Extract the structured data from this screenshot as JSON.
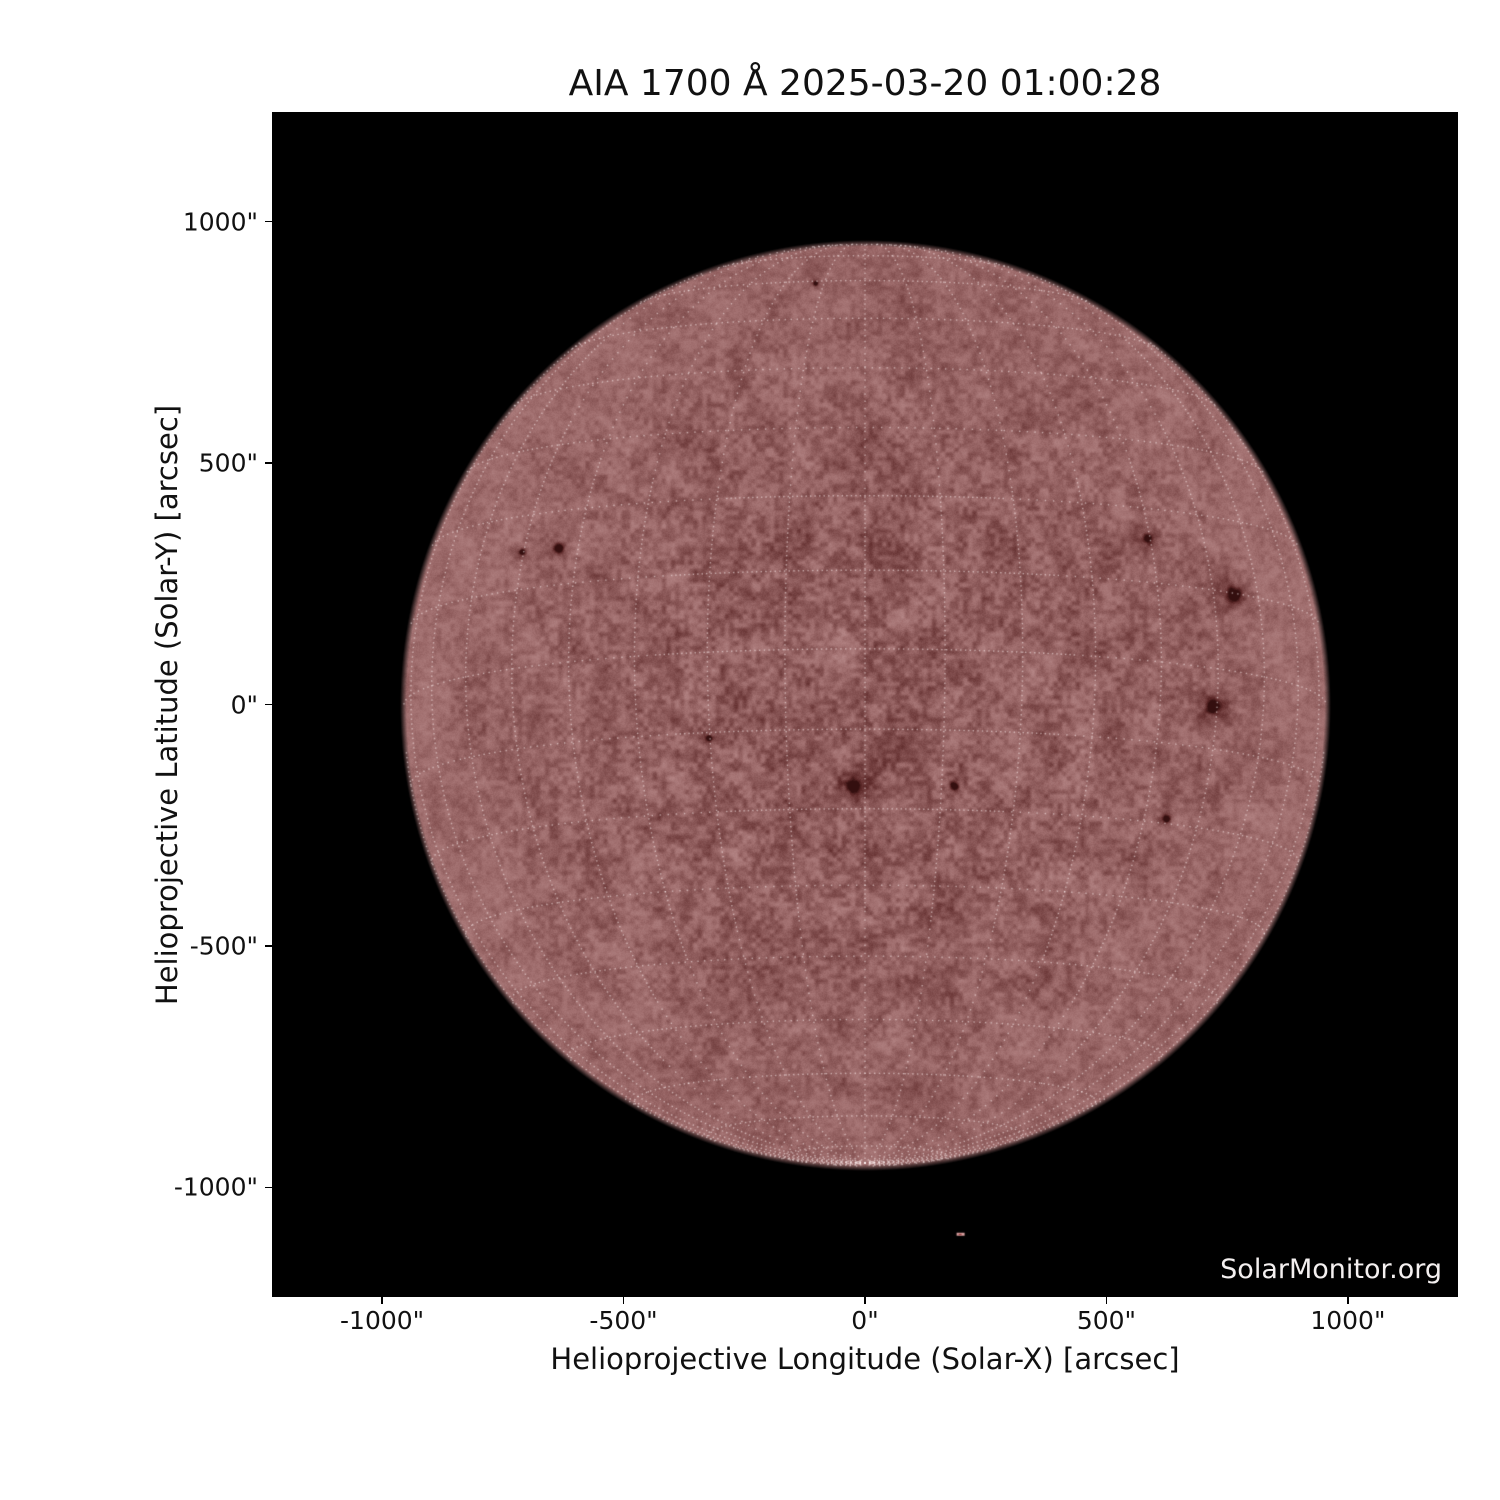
{
  "chart_data": {
    "type": "heatmap",
    "title": "AIA 1700 Å 2025-03-20 01:00:28",
    "instrument": "AIA",
    "wavelength": "1700 Å",
    "observation_datetime": "2025-03-20 01:00:28",
    "xlabel": "Helioprojective Longitude (Solar-X) [arcsec]",
    "ylabel": "Helioprojective Latitude (Solar-Y) [arcsec]",
    "xlim": [
      -1228,
      1228
    ],
    "ylim": [
      -1228,
      1228
    ],
    "xticks": {
      "values": [
        -1000,
        -500,
        0,
        500,
        1000
      ],
      "labels": [
        "-1000\"",
        "-500\"",
        "0\"",
        "500\"",
        "1000\""
      ]
    },
    "yticks": {
      "values": [
        1000,
        500,
        0,
        -500,
        -1000
      ],
      "labels": [
        "1000\"",
        "500\"",
        "0\"",
        "-500\"",
        "-1000\""
      ]
    },
    "watermark": "SolarMonitor.org",
    "plot_background": "#000000",
    "grid": {
      "visible": true,
      "style": "dotted",
      "spacing_deg": 10,
      "b0_deg": -7,
      "color": "rgba(255,242,242,0.55)"
    },
    "solar_disk": {
      "center_arcsec": [
        0,
        0
      ],
      "radius_arcsec": 958,
      "palette": {
        "umbra": "#3a1010",
        "dark_mottle": "#9a6a6a",
        "base": "#b48888",
        "bright_network": "#ddc4c4",
        "plage": "#fdf8f8"
      },
      "sunspots_arcsec": [
        {
          "x": -635,
          "y": 326,
          "r": 9
        },
        {
          "x": -711,
          "y": 318,
          "r": 5
        },
        {
          "x": 585,
          "y": 346,
          "r": 7
        },
        {
          "x": 763,
          "y": 229,
          "r": 14
        },
        {
          "x": 720,
          "y": -2,
          "r": 12
        },
        {
          "x": -25,
          "y": -169,
          "r": 11
        },
        {
          "x": 184,
          "y": -167,
          "r": 7
        },
        {
          "x": -324,
          "y": -68,
          "r": 5
        },
        {
          "x": 623,
          "y": -235,
          "r": 6
        },
        {
          "x": -103,
          "y": 874,
          "r": 4
        }
      ],
      "plage_bands_arcsec": [
        {
          "center_y": 380,
          "half_width": 175
        },
        {
          "center_y": -185,
          "half_width": 185
        }
      ],
      "artifact_dash_arcsec": {
        "x": 198,
        "y": -1097
      }
    }
  }
}
